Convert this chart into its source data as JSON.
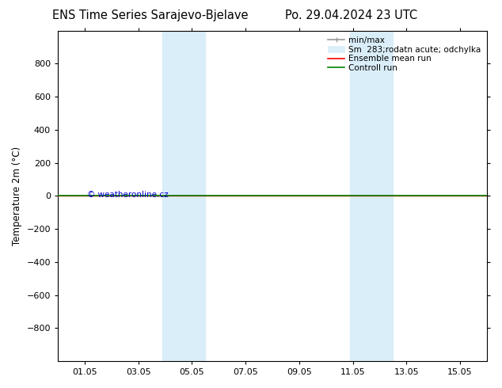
{
  "title_left": "ENS Time Series Sarajevo-Bjelave",
  "title_right": "Po. 29.04.2024 23 UTC",
  "ylabel": "Temperature 2m (°C)",
  "ylim_top": -1000,
  "ylim_bottom": 1000,
  "yticks": [
    -800,
    -600,
    -400,
    -200,
    0,
    200,
    400,
    600,
    800
  ],
  "xtick_labels": [
    "01.05",
    "03.05",
    "05.05",
    "07.05",
    "09.05",
    "11.05",
    "13.05",
    "15.05"
  ],
  "xtick_positions": [
    1,
    3,
    5,
    7,
    9,
    11,
    13,
    15
  ],
  "x_min": 0,
  "x_max": 16,
  "shaded_bands": [
    {
      "x_start": 3.9,
      "x_end": 4.5
    },
    {
      "x_start": 4.5,
      "x_end": 5.5
    },
    {
      "x_start": 10.9,
      "x_end": 11.5
    },
    {
      "x_start": 11.5,
      "x_end": 12.5
    }
  ],
  "control_run_y": 0,
  "ensemble_mean_y": 0,
  "control_run_color": "#008000",
  "ensemble_mean_color": "#ff0000",
  "band_color": "#daeef9",
  "minmax_color": "#999999",
  "copyright_text": "© weatheronline.cz",
  "copyright_color": "#0000cc",
  "legend_labels": [
    "min/max",
    "Sm  283;rodatn acute; odchylka",
    "Ensemble mean run",
    "Controll run"
  ],
  "background_color": "#ffffff",
  "title_fontsize": 10.5,
  "label_fontsize": 8.5,
  "tick_fontsize": 8
}
